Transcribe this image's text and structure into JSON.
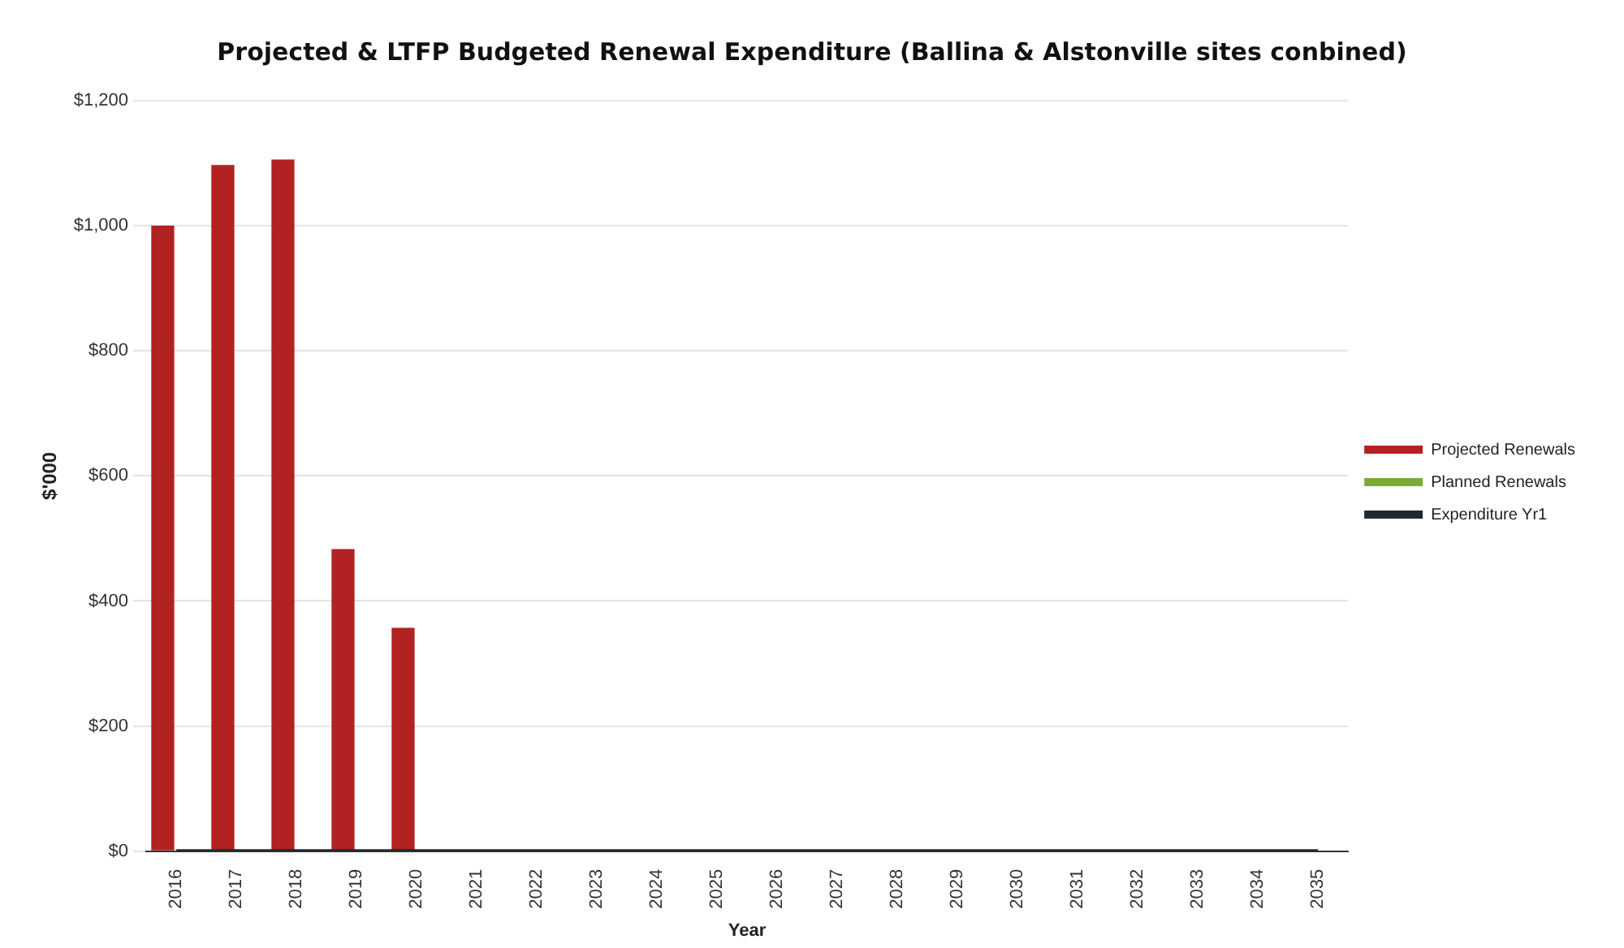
{
  "chart_data": {
    "type": "bar",
    "title": "Projected & LTFP Budgeted Renewal Expenditure (Ballina & Alstonville sites conbined)",
    "xlabel": "Year",
    "ylabel": "$'000",
    "categories": [
      "2016",
      "2017",
      "2018",
      "2019",
      "2020",
      "2021",
      "2022",
      "2023",
      "2024",
      "2025",
      "2026",
      "2027",
      "2028",
      "2029",
      "2030",
      "2031",
      "2032",
      "2033",
      "2034",
      "2035"
    ],
    "series": [
      {
        "name": "Projected Renewals",
        "color": "#b22222",
        "values": [
          1000,
          1097,
          1106,
          483,
          357,
          0,
          0,
          0,
          0,
          0,
          0,
          0,
          0,
          0,
          0,
          0,
          0,
          0,
          0,
          0
        ]
      },
      {
        "name": "Planned Renewals",
        "color": "#7aab3a",
        "values": [
          0,
          0,
          0,
          0,
          0,
          0,
          0,
          0,
          0,
          0,
          0,
          0,
          0,
          0,
          0,
          0,
          0,
          0,
          0,
          0
        ]
      },
      {
        "name": "Expenditure Yr1",
        "type": "line",
        "color": "#1f2a30",
        "values": [
          0,
          0,
          0,
          0,
          0,
          0,
          0,
          0,
          0,
          0,
          0,
          0,
          0,
          0,
          0,
          0,
          0,
          0,
          0,
          0
        ]
      }
    ],
    "ylim": [
      0,
      1200
    ],
    "yticks": [
      {
        "value": 0,
        "label": "$0"
      },
      {
        "value": 200,
        "label": "$200"
      },
      {
        "value": 400,
        "label": "$400"
      },
      {
        "value": 600,
        "label": "$600"
      },
      {
        "value": 800,
        "label": "$800"
      },
      {
        "value": 1000,
        "label": "$1,000"
      },
      {
        "value": 1200,
        "label": "$1,200"
      }
    ],
    "grid": "y",
    "legend": "right",
    "marker": "none"
  }
}
